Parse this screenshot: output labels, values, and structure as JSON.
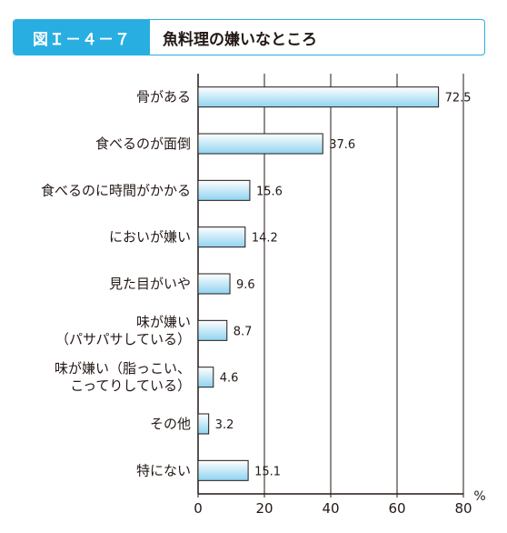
{
  "header": {
    "figure_label": "図Ｉ－４－７",
    "title": "魚料理の嫌いなところ"
  },
  "colors": {
    "accent": "#29aee2",
    "bar_fill_light": "#ffffff",
    "bar_fill_dark": "#8fd3f0",
    "bar_stroke": "#231815"
  },
  "chart_data": {
    "type": "bar",
    "orientation": "horizontal",
    "title": "魚料理の嫌いなところ",
    "categories": [
      [
        "骨がある"
      ],
      [
        "食べるのが面倒"
      ],
      [
        "食べるのに時間がかかる"
      ],
      [
        "においが嫌い"
      ],
      [
        "見た目がいや"
      ],
      [
        "味が嫌い",
        "（パサパサしている）"
      ],
      [
        "味が嫌い（脂っこい、",
        "こってりしている）"
      ],
      [
        "その他"
      ],
      [
        "特にない"
      ]
    ],
    "values": [
      72.5,
      37.6,
      15.6,
      14.2,
      9.6,
      8.7,
      4.6,
      3.2,
      15.1
    ],
    "value_labels": [
      "72.5",
      "37.6",
      "15.6",
      "14.2",
      "9.6",
      "8.7",
      "4.6",
      "3.2",
      "15.1"
    ],
    "xlim": [
      0,
      80
    ],
    "x_ticks": [
      0,
      20,
      40,
      60,
      80
    ],
    "x_tick_labels": [
      "0",
      "20",
      "40",
      "60",
      "80"
    ],
    "unit": "%",
    "grid": true
  }
}
